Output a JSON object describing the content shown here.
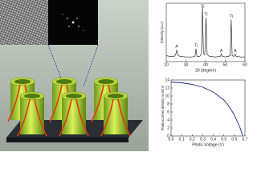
{
  "chart_data": [
    {
      "type": "line",
      "ylabel": "Intensity (a.u.)",
      "xlabel": "2θ (degree)",
      "x": [
        20,
        22,
        24,
        24.8,
        25.3,
        25.8,
        27,
        30,
        33,
        34.6,
        35.1,
        35.6,
        37,
        37.9,
        38.4,
        38.9,
        39.6,
        40.2,
        40.8,
        42,
        45,
        47.5,
        48,
        48.5,
        50,
        52.5,
        53,
        53.5,
        54.5,
        55,
        55.5,
        58,
        60
      ],
      "values": [
        10,
        9,
        9,
        12,
        20,
        12,
        9,
        8,
        8,
        9,
        22,
        9,
        9,
        14,
        95,
        14,
        12,
        75,
        12,
        9,
        8,
        9,
        13,
        9,
        8,
        10,
        72,
        10,
        9,
        13,
        9,
        8,
        8
      ],
      "color": "#111111",
      "xlim": [
        20,
        60
      ],
      "xticks": [
        20,
        30,
        40,
        50,
        60
      ],
      "ylim": [
        0,
        100
      ],
      "annotations": [
        {
          "text": "A",
          "x": 25.3
        },
        {
          "text": "Ti",
          "x": 35.1
        },
        {
          "text": "Ti",
          "x": 38.4
        },
        {
          "text": "Ti",
          "x": 40.2
        },
        {
          "text": "A",
          "x": 48
        },
        {
          "text": "Ti",
          "x": 53
        },
        {
          "text": "A",
          "x": 55
        }
      ]
    },
    {
      "type": "line",
      "ylabel": "Photo-current density mA/cm²",
      "xlabel": "Photo-Voltage (V)",
      "x": [
        0,
        0.1,
        0.2,
        0.3,
        0.4,
        0.5,
        0.55,
        0.6,
        0.65,
        0.68
      ],
      "values": [
        13.5,
        13.3,
        12.9,
        12.2,
        11.0,
        9.0,
        7.4,
        5.2,
        2.3,
        0
      ],
      "color": "#1a2a7a",
      "xlim": [
        0,
        0.7
      ],
      "xticks": [
        {
          "value": 0,
          "label": "0.0"
        },
        0.1,
        0.2,
        0.3,
        0.4,
        0.5,
        0.6,
        0.7
      ],
      "ylim": [
        0,
        14
      ],
      "yticks": [
        0,
        2,
        4,
        6,
        8,
        10,
        12,
        14
      ]
    }
  ]
}
